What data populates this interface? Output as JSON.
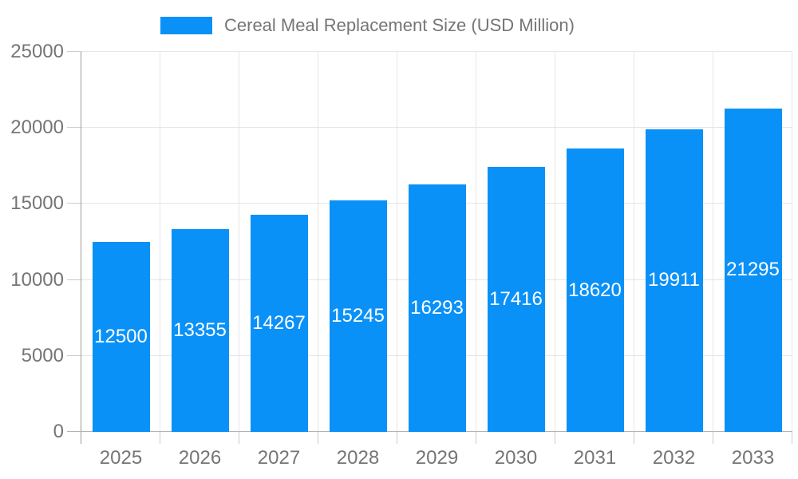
{
  "legend": {
    "label": "Cereal Meal Replacement Size (USD Million)"
  },
  "chart_data": {
    "type": "bar",
    "title": "Cereal Meal Replacement Size (USD Million)",
    "categories": [
      "2025",
      "2026",
      "2027",
      "2028",
      "2029",
      "2030",
      "2031",
      "2032",
      "2033"
    ],
    "values": [
      12500,
      13355,
      14267,
      15245,
      16293,
      17416,
      18620,
      19911,
      21295
    ],
    "value_labels": [
      "12500",
      "13355",
      "14267",
      "15245",
      "16293",
      "17416",
      "18620",
      "19911",
      "21295"
    ],
    "xlabel": "",
    "ylabel": "",
    "ylim": [
      0,
      25000
    ],
    "ytick_step": 5000,
    "ytick_labels": [
      "0",
      "5000",
      "10000",
      "15000",
      "20000",
      "25000"
    ],
    "grid": true,
    "legend_position": "top-center",
    "colors": {
      "bar": "#0a91f7",
      "value_label": "#ffffff",
      "axis_text": "#757575",
      "gridline": "#e6e6e6",
      "axis_line_y": "#999999",
      "axis_line_x": "#b3b3b3",
      "tick": "#cccccc",
      "background": "#ffffff"
    }
  }
}
